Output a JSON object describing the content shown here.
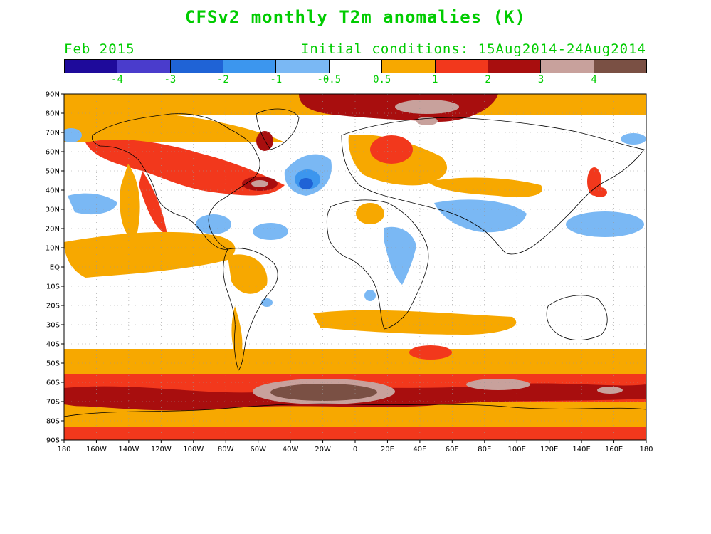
{
  "title": "CFSv2 monthly T2m anomalies (K)",
  "subtitle_left": "Feb 2015",
  "subtitle_right": "Initial conditions: 15Aug2014-24Aug2014",
  "colors": {
    "text": "#00cc00",
    "scale": [
      "#1e0a9b",
      "#4a3ccc",
      "#1f63d6",
      "#3c96ee",
      "#7ab8f4",
      "#ffffff",
      "#f7a800",
      "#f2381c",
      "#a80e0e",
      "#c8a19c",
      "#7a5044"
    ]
  },
  "colorbar_labels": [
    "-4",
    "-3",
    "-2",
    "-1",
    "-0.5",
    "0.5",
    "1",
    "2",
    "3",
    "4"
  ],
  "lat_labels": [
    "90N",
    "80N",
    "70N",
    "60N",
    "50N",
    "40N",
    "30N",
    "20N",
    "10N",
    "EQ",
    "10S",
    "20S",
    "30S",
    "40S",
    "50S",
    "60S",
    "70S",
    "80S",
    "90S"
  ],
  "lon_labels": [
    "180",
    "160W",
    "140W",
    "120W",
    "100W",
    "80W",
    "60W",
    "40W",
    "20W",
    "0",
    "20E",
    "40E",
    "60E",
    "80E",
    "100E",
    "120E",
    "140E",
    "160E",
    "180"
  ]
}
